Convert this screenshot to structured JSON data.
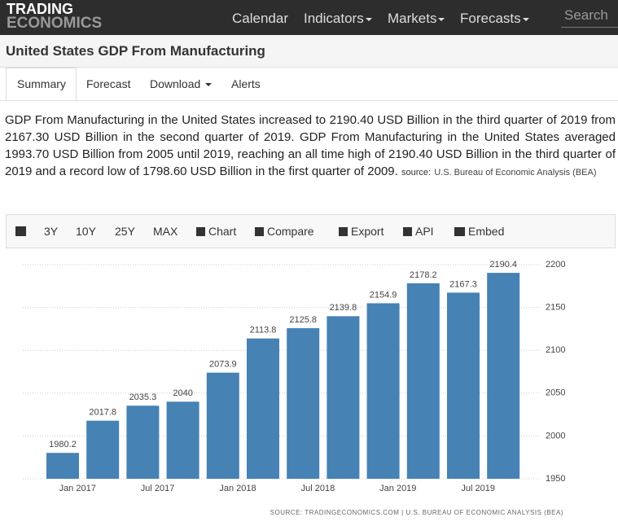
{
  "nav": {
    "logo_top": "TRADING",
    "logo_bottom": "ECONOMICS",
    "items": [
      "Calendar",
      "Indicators",
      "Markets",
      "Forecasts"
    ],
    "search": "Search"
  },
  "header": {
    "title": "United States GDP From Manufacturing"
  },
  "tabs": [
    "Summary",
    "Forecast",
    "Download",
    "Alerts"
  ],
  "summary": {
    "text": "GDP From Manufacturing in the United States increased to 2190.40 USD Billion in the third quarter of 2019 from 2167.30 USD Billion in the second quarter of 2019. GDP From Manufacturing in the United States averaged 1993.70 USD Billion from 2005 until 2019, reaching an all time high of 2190.40 USD Billion in the third quarter of 2019 and a record low of 1798.60 USD Billion in the first quarter of 2009.",
    "source_label": "source:",
    "source_link": "U.S. Bureau of Economic Analysis (BEA)"
  },
  "toolbar": [
    "3Y",
    "10Y",
    "25Y",
    "MAX",
    "Chart",
    "Compare",
    "Export",
    "API",
    "Embed"
  ],
  "chart_data": {
    "type": "bar",
    "categories": [
      null,
      null,
      null,
      null,
      null,
      null,
      null,
      null,
      null,
      null,
      null,
      null
    ],
    "xtick_labels": [
      "Jan 2017",
      "Jul 2017",
      "Jan 2018",
      "Jul 2018",
      "Jan 2019",
      "Jul 2019"
    ],
    "values": [
      1980.2,
      2017.8,
      2035.3,
      2040,
      2073.9,
      2113.8,
      2125.8,
      2139.8,
      2154.9,
      2178.2,
      2167.3,
      2190.4
    ],
    "color": "#4682b4",
    "ylim": [
      1950,
      2200
    ],
    "yticks": [
      1950,
      2000,
      2050,
      2100,
      2150,
      2200
    ],
    "grid": true,
    "source": "SOURCE: TRADINGECONOMICS.COM | U.S. BUREAU OF ECONOMIC ANALYSIS (BEA)"
  }
}
